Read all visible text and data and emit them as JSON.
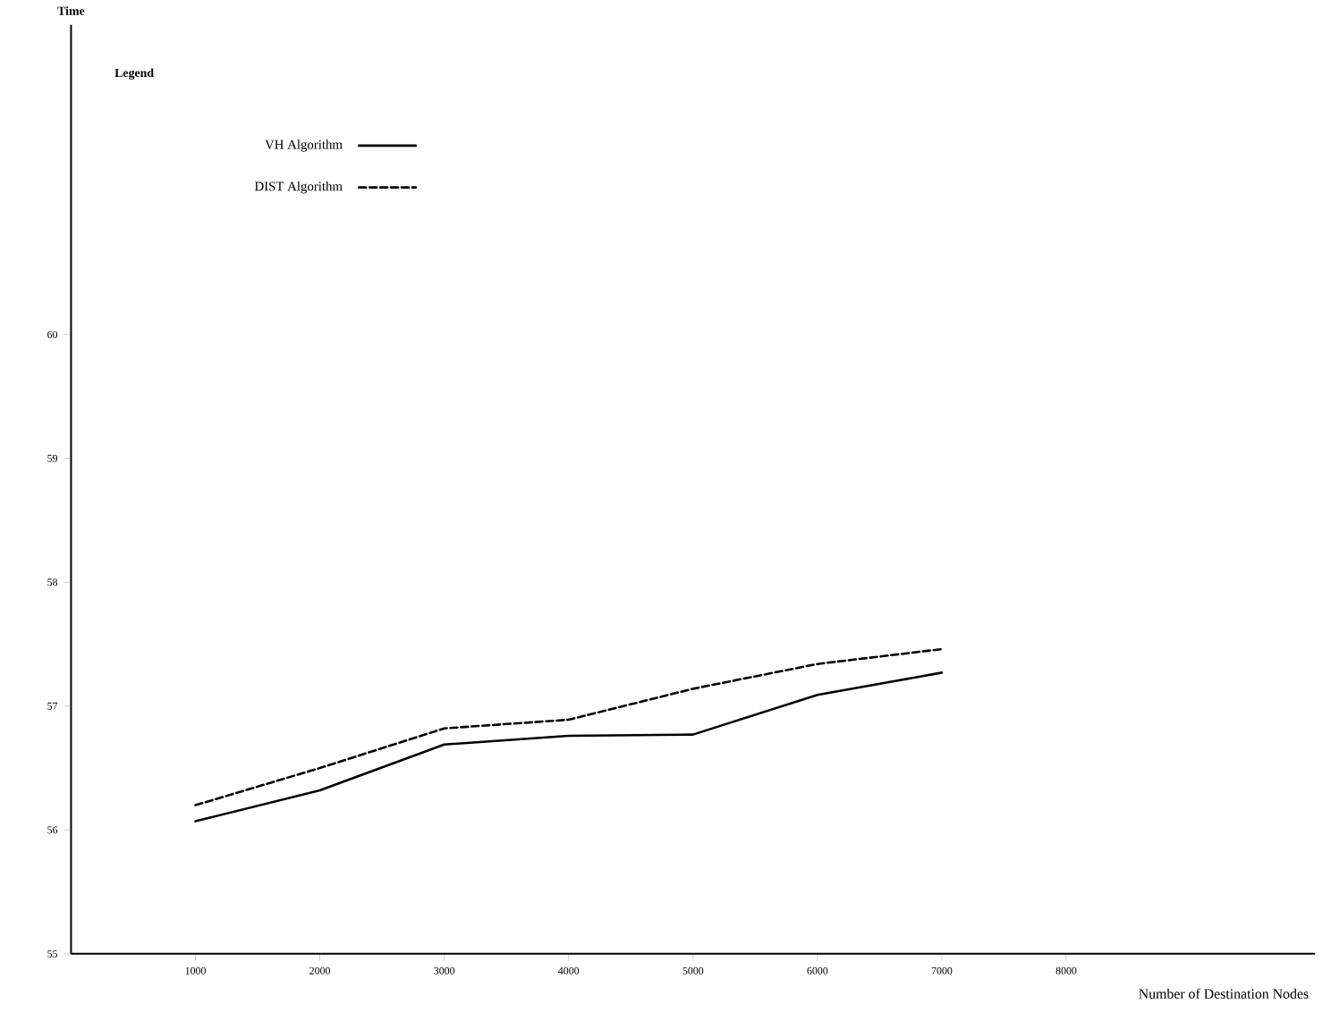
{
  "chart_data": {
    "type": "line",
    "ylabel": "Time",
    "xlabel": "Number of Destination Nodes",
    "legend_title": "Legend",
    "x": [
      1000,
      2000,
      3000,
      4000,
      5000,
      6000,
      7000
    ],
    "series": [
      {
        "name": "VH Algorithm",
        "color": "#000000",
        "line_style": "solid",
        "values": [
          56.07,
          56.32,
          56.69,
          56.76,
          56.77,
          57.09,
          57.27
        ]
      },
      {
        "name": "DIST Algorithm",
        "color": "#000000",
        "line_style": "dashed",
        "values": [
          56.2,
          56.5,
          56.82,
          56.89,
          57.14,
          57.34,
          57.46
        ]
      }
    ],
    "xlim": [
      0,
      10000
    ],
    "xticks": [
      1000,
      2000,
      3000,
      4000,
      5000,
      6000,
      7000,
      8000
    ],
    "ylim": [
      55,
      62.5
    ],
    "yticks": [
      55,
      56,
      57,
      58,
      59,
      60
    ],
    "legend": "top left",
    "marker": "none"
  }
}
